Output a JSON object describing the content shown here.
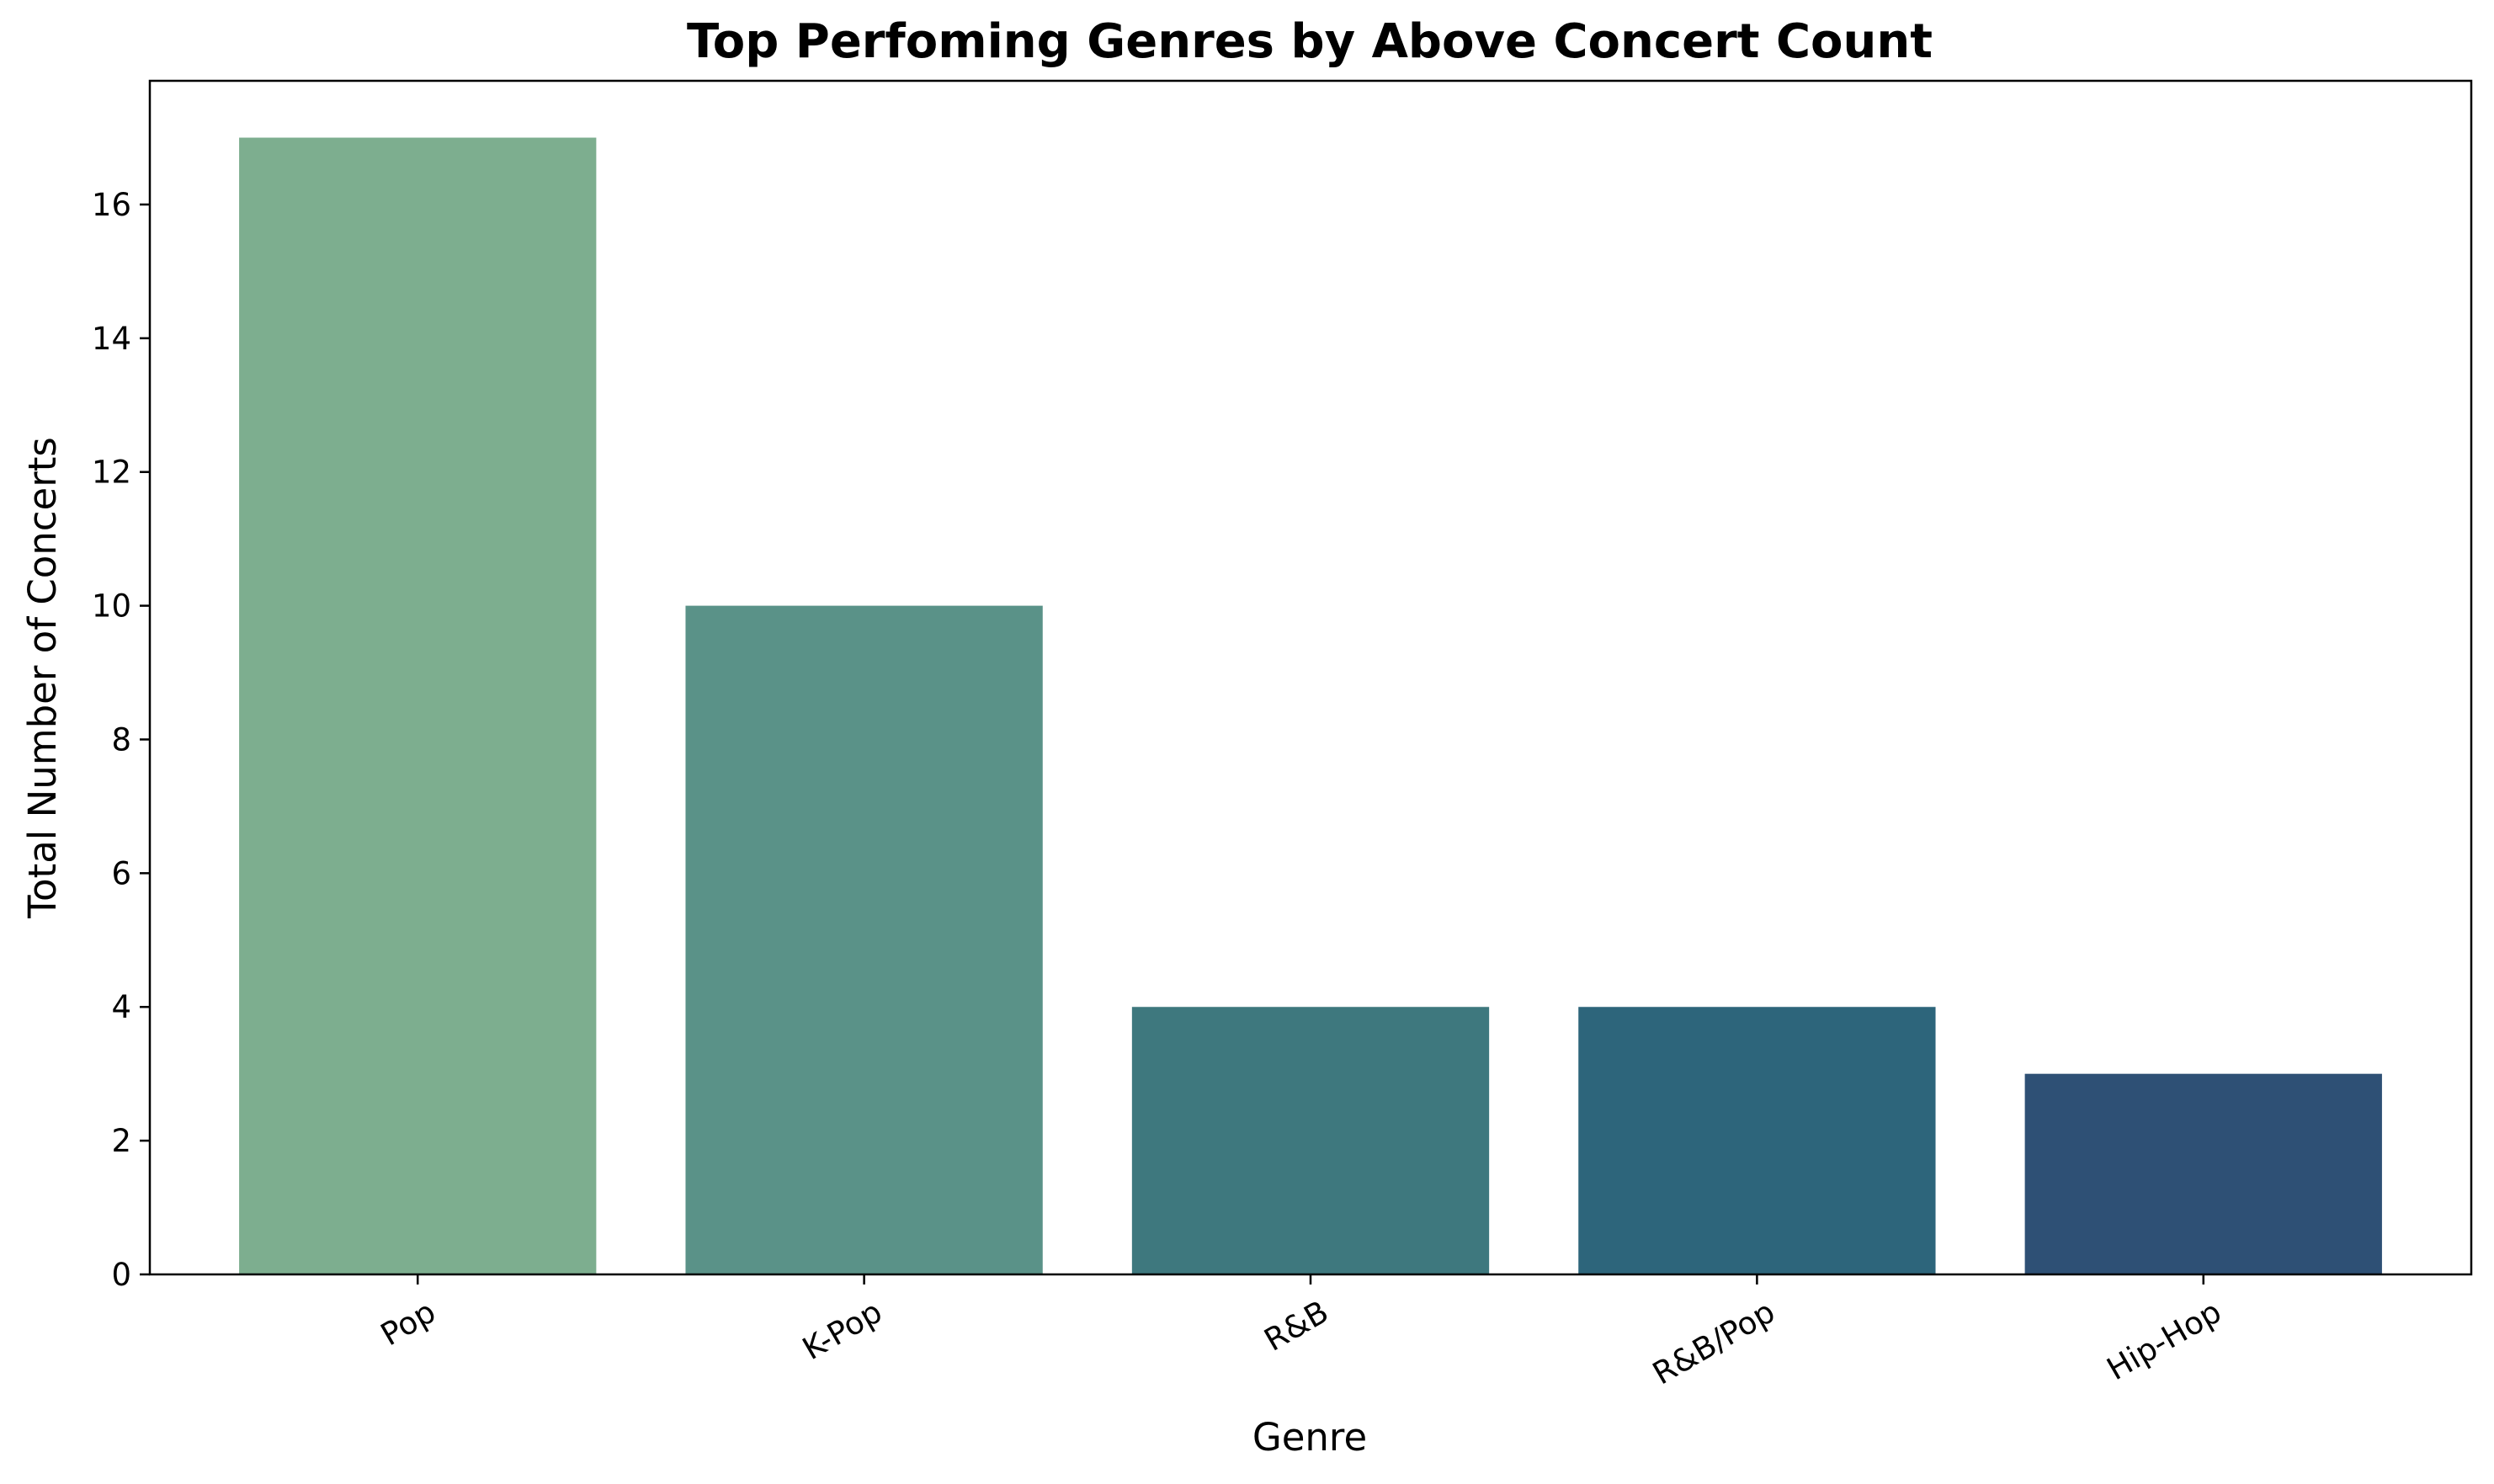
{
  "chart_data": {
    "type": "bar",
    "title": "Top Perfoming Genres by Above Concert Count",
    "xlabel": "Genre",
    "ylabel": "Total Number of Concerts",
    "categories": [
      "Pop",
      "K-Pop",
      "R&B",
      "R&B/Pop",
      "Hip-Hop"
    ],
    "values": [
      17,
      10,
      4,
      4,
      3
    ],
    "colors": [
      "#7dae8f",
      "#5a9288",
      "#3e787e",
      "#2d657b",
      "#2e5075"
    ],
    "ylim": [
      0,
      17.85
    ],
    "yticks": [
      0,
      2,
      4,
      6,
      8,
      10,
      12,
      14,
      16
    ],
    "xtick_rotation_deg": -30,
    "grid": false,
    "legend": "none"
  }
}
